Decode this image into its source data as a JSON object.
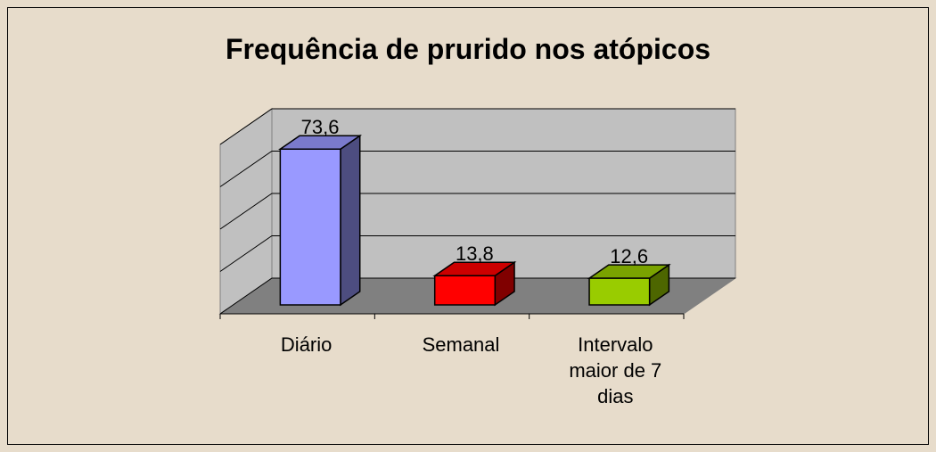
{
  "chart_data": {
    "type": "bar3d",
    "title": "Frequência de prurido nos atópicos",
    "categories": [
      "Diário",
      "Semanal",
      "Intervalo maior de 7 dias"
    ],
    "values": [
      73.6,
      13.8,
      12.6
    ],
    "value_labels": [
      "73,6",
      "13,8",
      "12,6"
    ],
    "colors": [
      "#9999ff",
      "#ff0000",
      "#99cc00"
    ],
    "ylim": [
      0,
      80
    ],
    "yticks": [
      0,
      20,
      40,
      60,
      80
    ],
    "grid": true
  }
}
